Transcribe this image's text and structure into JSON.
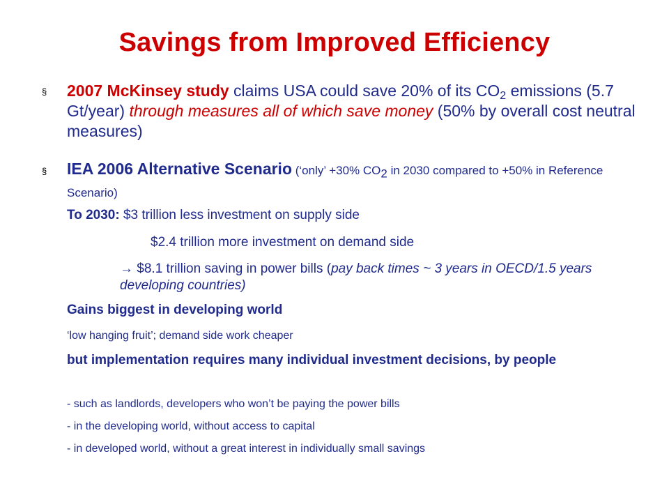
{
  "title": "Savings from Improved Efficiency",
  "bullet_marker": "§",
  "bullet1": {
    "lead_bold": "2007 McKinsey study",
    "text_a": " claims USA could save 20% of its CO",
    "sub": "2",
    "text_b": " emissions (5.7 Gt/year) ",
    "italic": "through measures all of which save money",
    "text_c": " (50% by overall cost neutral measures)"
  },
  "bullet2": {
    "lead_bold": "IEA 2006  Alternative Scenario",
    "small_a": "  (‘only’ +30% CO",
    "sub": "2",
    "small_b": " in 2030 compared to +50% in Reference Scenario)"
  },
  "lines": {
    "to2030_label": "To 2030:",
    "to2030_text": " $3 trillion less investment on supply side",
    "demand": "$2.4 trillion more investment on demand side",
    "saving_a": "→ $8.1 trillion saving in power bills (",
    "saving_italic": "pay back times ~ 3 years in OECD/1.5 years developing countries)",
    "gains": "Gains biggest in developing world",
    "fruit": "‘low hanging fruit’; demand side work cheaper",
    "but": "but implementation requires many individual investment decisions, by people",
    "dash1": "- such as landlords, developers who won’t be paying the power bills",
    "dash2": "- in the developing world, without access to capital",
    "dash3": "- in developed world, without a great interest in individually small savings"
  },
  "colors": {
    "title": "#cc0000",
    "body": "#1f2a8c",
    "accent": "#cc0000"
  }
}
